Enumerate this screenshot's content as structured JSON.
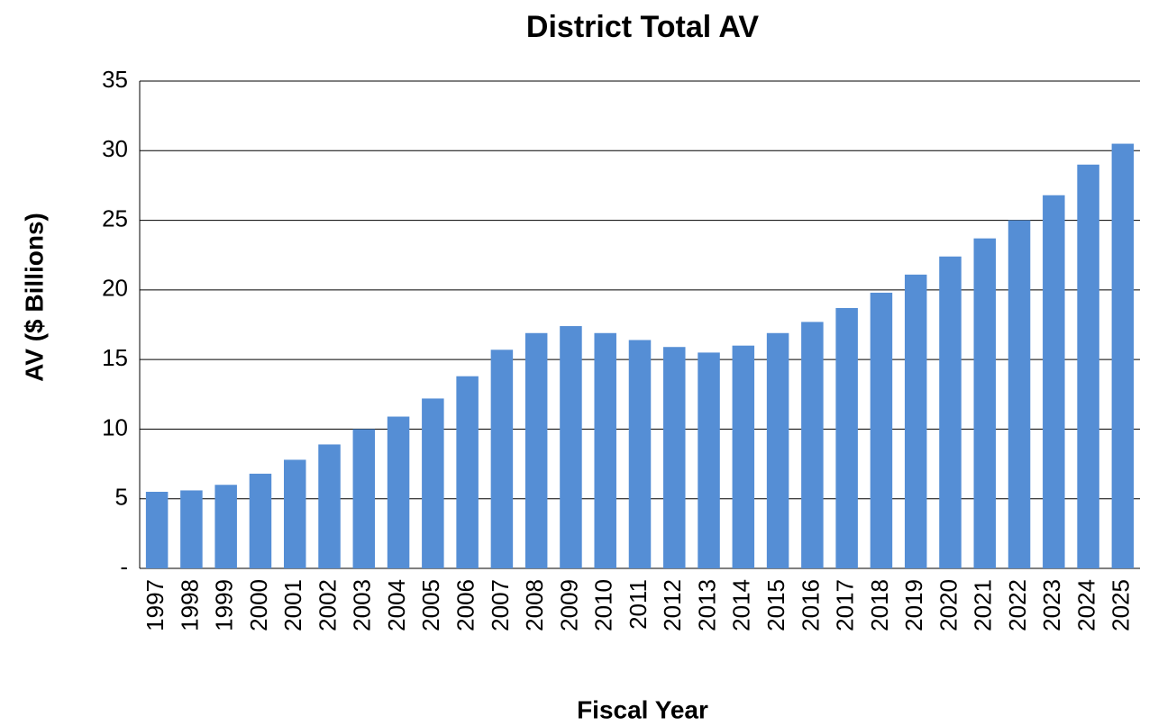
{
  "chart_data": {
    "type": "bar",
    "title": "District Total AV",
    "x_label": "Fiscal Year",
    "y_label": "AV ($ Billions)",
    "categories": [
      "1997",
      "1998",
      "1999",
      "2000",
      "2001",
      "2002",
      "2003",
      "2004",
      "2005",
      "2006",
      "2007",
      "2008",
      "2009",
      "2010",
      "2011",
      "2012",
      "2013",
      "2014",
      "2015",
      "2016",
      "2017",
      "2018",
      "2019",
      "2020",
      "2021",
      "2022",
      "2023",
      "2024",
      "2025"
    ],
    "values": [
      5.5,
      5.6,
      6.0,
      6.8,
      7.8,
      8.9,
      10.0,
      10.9,
      12.2,
      13.8,
      15.7,
      16.9,
      17.4,
      16.9,
      16.4,
      15.9,
      15.5,
      16.0,
      16.9,
      17.7,
      18.7,
      19.8,
      21.1,
      22.4,
      23.7,
      25.0,
      26.8,
      29.0,
      30.5
    ],
    "color": "#558ed5",
    "ylim": [
      0,
      35
    ],
    "yticks": [
      {
        "value": 0,
        "label": "-"
      },
      5,
      10,
      15,
      20,
      25,
      30,
      35
    ],
    "grid": true
  }
}
